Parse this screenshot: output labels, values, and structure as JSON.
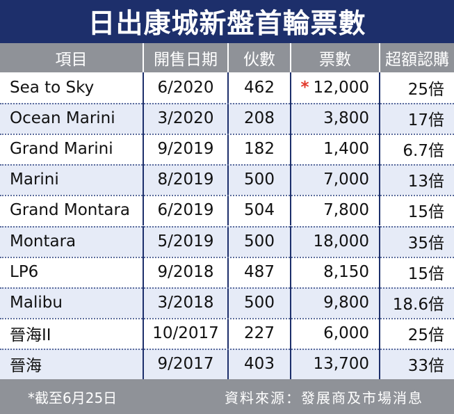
{
  "title": "日出康城新盤首輪票數",
  "headers": [
    "項目",
    "開售日期",
    "伙數",
    "票數",
    "超額認購"
  ],
  "rows": [
    {
      "project": "Sea to Sky",
      "date": "6/2020",
      "units": "462",
      "tickets": "12,000",
      "oversub": "25倍",
      "starred": true
    },
    {
      "project": "Ocean Marini",
      "date": "3/2020",
      "units": "208",
      "tickets": "3,800",
      "oversub": "17倍"
    },
    {
      "project": "Grand Marini",
      "date": "9/2019",
      "units": "182",
      "tickets": "1,400",
      "oversub": "6.7倍"
    },
    {
      "project": "Marini",
      "date": "8/2019",
      "units": "500",
      "tickets": "7,000",
      "oversub": "13倍"
    },
    {
      "project": "Grand Montara",
      "date": "6/2019",
      "units": "504",
      "tickets": "7,800",
      "oversub": "15倍"
    },
    {
      "project": "Montara",
      "date": "5/2019",
      "units": "500",
      "tickets": "18,000",
      "oversub": "35倍"
    },
    {
      "project": "LP6",
      "date": "9/2018",
      "units": "487",
      "tickets": "8,150",
      "oversub": "15倍"
    },
    {
      "project": "Malibu",
      "date": "3/2018",
      "units": "500",
      "tickets": "9,800",
      "oversub": "18.6倍"
    },
    {
      "project": "晉海II",
      "date": "10/2017",
      "units": "227",
      "tickets": "6,000",
      "oversub": "25倍"
    },
    {
      "project": "晉海",
      "date": "9/2017",
      "units": "403",
      "tickets": "13,700",
      "oversub": "33倍"
    }
  ],
  "asterisk_symbol": "*",
  "footer": {
    "note": "*截至6月25日",
    "source": "資料來源：發展商及市場消息"
  },
  "colors": {
    "title_bg": "#1d2f6b",
    "header_bg": "#8f9298",
    "alt_row_bg": "#e6ebf7",
    "asterisk": "#e23a2c"
  }
}
